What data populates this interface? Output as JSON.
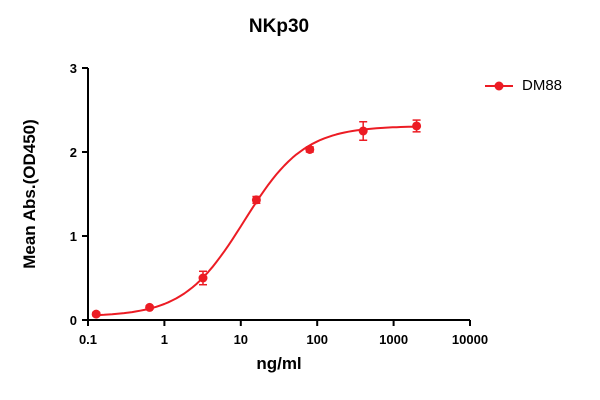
{
  "figure": {
    "background": "#ffffff"
  },
  "chart_data": {
    "type": "line",
    "title": "NKp30",
    "xlabel": "ng/ml",
    "ylabel": "Mean Abs.(OD450)",
    "x_scale": "log",
    "xlim": [
      0.1,
      10000
    ],
    "ylim": [
      0,
      3
    ],
    "x_ticks": [
      0.1,
      1,
      10,
      100,
      1000,
      10000
    ],
    "x_tick_labels": [
      "0.1",
      "1",
      "10",
      "100",
      "1000",
      "10000"
    ],
    "y_ticks": [
      0,
      1,
      2,
      3
    ],
    "y_tick_labels": [
      "0",
      "1",
      "2",
      "3"
    ],
    "grid": false,
    "legend_position": "right",
    "axis_color": "#000000",
    "series": [
      {
        "name": "DM88",
        "color": "#ec1c24",
        "marker": "circle",
        "x": [
          0.128,
          0.64,
          3.2,
          16,
          80,
          400,
          2000
        ],
        "y": [
          0.07,
          0.15,
          0.5,
          1.43,
          2.03,
          2.25,
          2.31
        ],
        "y_err": [
          0.02,
          0.02,
          0.08,
          0.04,
          0.03,
          0.11,
          0.07
        ],
        "fit": {
          "type": "4PL",
          "bottom": 0.04,
          "top": 2.31,
          "ec50": 11,
          "hill": 1.1
        }
      }
    ]
  }
}
